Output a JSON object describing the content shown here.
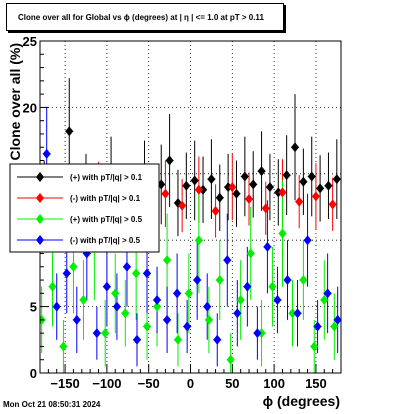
{
  "chart_data": {
    "type": "scatter",
    "title": "Clone  over all for Global vs ϕ (degrees) at |   η | <= 1.0 at pT > 0.11",
    "xlabel": "ϕ (degrees)",
    "ylabel": "Clone  over all (%)",
    "xlim": [
      -180,
      180
    ],
    "ylim": [
      0,
      25
    ],
    "x_ticks": [
      -150,
      -100,
      -50,
      0,
      50,
      100,
      150
    ],
    "x_tick_labels": [
      "−150",
      "−100",
      "−50",
      "0",
      "50",
      "100",
      "150"
    ],
    "y_ticks": [
      0,
      5,
      10,
      15,
      20,
      25
    ],
    "y_tick_labels": [
      "0",
      "5",
      "10",
      "15",
      "20",
      "25"
    ],
    "grid": true,
    "legend_position": "left",
    "series": [
      {
        "name": "(+) with pT/|q| > 0.1",
        "color": "#000000",
        "x": [
          -175,
          -145,
          -125,
          -115,
          -95,
          -85,
          -55,
          -45,
          -35,
          -25,
          -15,
          -5,
          5,
          15,
          25,
          35,
          45,
          55,
          65,
          75,
          85,
          95,
          105,
          115,
          125,
          135,
          145,
          155,
          165,
          175
        ],
        "y": [
          13.5,
          18.2,
          14.0,
          12.5,
          14.8,
          13.2,
          14.5,
          13.0,
          14.2,
          16.0,
          12.8,
          14.1,
          14.5,
          13.8,
          14.6,
          13.2,
          14.0,
          13.5,
          14.8,
          14.2,
          15.2,
          14.0,
          13.6,
          14.9,
          17.0,
          14.4,
          14.8,
          13.9,
          14.1,
          14.6
        ],
        "err": [
          2.5,
          4.0,
          2.5,
          2.5,
          3.0,
          2.5,
          3.0,
          2.5,
          3.0,
          3.5,
          2.5,
          2.5,
          3.0,
          2.5,
          3.0,
          2.5,
          2.5,
          2.5,
          3.0,
          2.5,
          3.0,
          2.5,
          2.5,
          3.0,
          4.0,
          2.5,
          3.0,
          2.5,
          2.5,
          3.0
        ]
      },
      {
        "name": "(-) with pT/|q| > 0.1",
        "color": "#ff0000",
        "x": [
          -170,
          -150,
          -130,
          -110,
          -90,
          -70,
          -50,
          -30,
          -10,
          10,
          30,
          50,
          70,
          90,
          110,
          130,
          150,
          170
        ],
        "y": [
          12.0,
          12.8,
          11.9,
          13.4,
          12.5,
          13.0,
          11.8,
          13.5,
          12.6,
          13.8,
          12.2,
          14.0,
          13.1,
          12.4,
          13.6,
          12.9,
          13.3,
          12.7
        ],
        "err": [
          2.0,
          2.5,
          2.0,
          2.5,
          2.0,
          2.5,
          2.0,
          2.5,
          2.0,
          2.5,
          2.0,
          2.5,
          2.0,
          2.0,
          2.5,
          2.0,
          2.5,
          2.0
        ]
      },
      {
        "name": "(+) with pT/|q| > 0.5",
        "color": "#00ee00",
        "x": [
          -178,
          -165,
          -152,
          -140,
          -128,
          -115,
          -102,
          -90,
          -78,
          -65,
          -52,
          -40,
          -28,
          -15,
          -2,
          10,
          22,
          35,
          48,
          60,
          72,
          85,
          98,
          110,
          122,
          135,
          148,
          160,
          172
        ],
        "y": [
          4.0,
          6.5,
          2.0,
          8.0,
          5.5,
          9.5,
          3.0,
          6.0,
          4.5,
          7.5,
          3.5,
          5.0,
          8.5,
          2.5,
          6.0,
          10.0,
          4.0,
          7.0,
          1.0,
          5.5,
          9.0,
          3.0,
          6.5,
          10.5,
          4.5,
          7.0,
          2.0,
          5.5,
          3.5
        ],
        "err": [
          2.5,
          3.0,
          2.0,
          3.5,
          3.0,
          4.0,
          2.5,
          3.0,
          2.5,
          3.5,
          2.5,
          3.0,
          3.5,
          2.0,
          3.0,
          4.0,
          2.5,
          3.0,
          2.0,
          3.0,
          3.5,
          2.5,
          3.0,
          4.0,
          2.5,
          3.0,
          2.0,
          3.0,
          2.5
        ]
      },
      {
        "name": "(-) with pT/|q| > 0.5",
        "color": "#0000ff",
        "x": [
          -172,
          -160,
          -148,
          -136,
          -124,
          -112,
          -100,
          -88,
          -76,
          -64,
          -52,
          -40,
          -28,
          -16,
          -4,
          8,
          20,
          32,
          44,
          56,
          68,
          80,
          92,
          104,
          116,
          128,
          140,
          152,
          164,
          176
        ],
        "y": [
          16.5,
          5.0,
          7.5,
          4.0,
          9.0,
          3.0,
          6.5,
          5.0,
          8.0,
          2.5,
          7.5,
          5.5,
          4.0,
          6.0,
          3.5,
          7.0,
          5.0,
          2.5,
          8.5,
          4.5,
          6.5,
          3.0,
          9.5,
          5.5,
          7.0,
          4.5,
          10.0,
          3.5,
          6.0,
          4.0
        ],
        "err": [
          3.5,
          2.5,
          3.0,
          2.5,
          3.5,
          2.0,
          3.0,
          2.5,
          3.0,
          2.0,
          3.0,
          2.5,
          2.5,
          3.0,
          2.0,
          3.0,
          2.5,
          2.0,
          3.5,
          2.5,
          3.0,
          2.0,
          3.5,
          2.5,
          3.0,
          2.5,
          3.5,
          2.0,
          3.0,
          2.5
        ]
      }
    ]
  },
  "footer": {
    "timestamp": "Mon Oct 21 08:50:31 2024"
  }
}
